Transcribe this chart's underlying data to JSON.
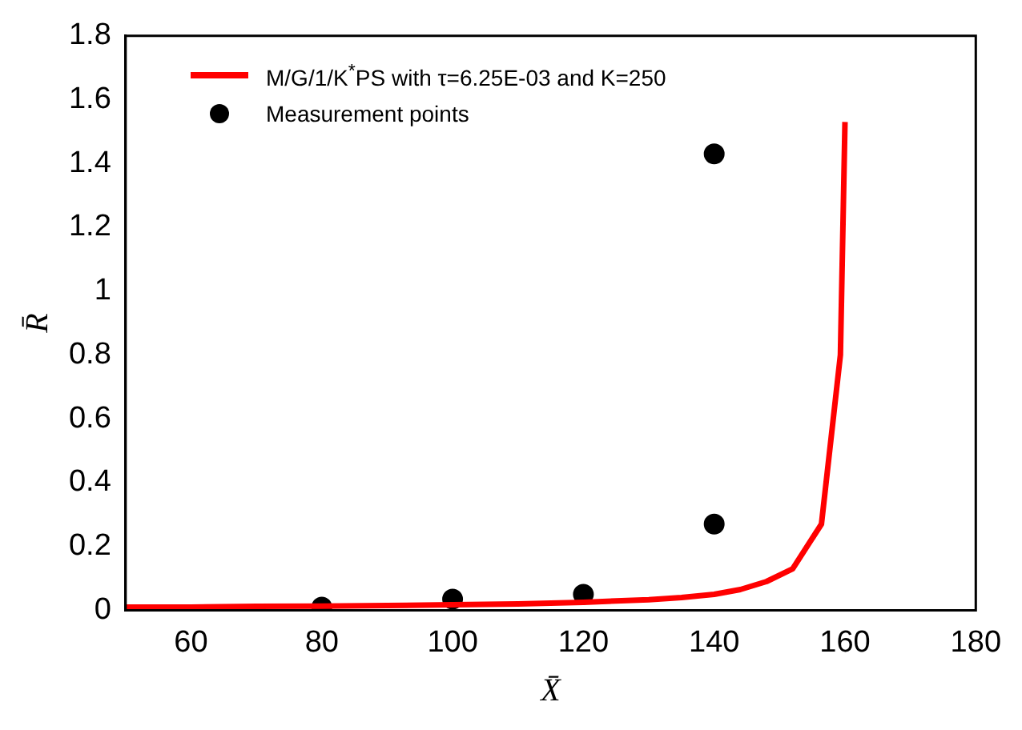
{
  "chart_data": {
    "type": "line",
    "xlabel": "X̄",
    "ylabel": "R̄",
    "xlim": [
      50,
      180
    ],
    "xticks": [
      60,
      80,
      100,
      120,
      140,
      160,
      180
    ],
    "ylim": [
      0,
      1.8
    ],
    "yticks": [
      0,
      0.2,
      0.4,
      0.6,
      0.8,
      1,
      1.2,
      1.4,
      1.6,
      1.8
    ],
    "grid": false,
    "legend": "top left",
    "series": [
      {
        "name": "M/G/1/K$^{*}$PS with τ=6.25E-03 and K=250",
        "type": "line",
        "color": "#ff0000",
        "line_style": "solid",
        "x": [
          50,
          60,
          70,
          80,
          90,
          100,
          110,
          120,
          130,
          135,
          140,
          144,
          148,
          152,
          156.4,
          159.3,
          160
        ],
        "values": [
          0.01,
          0.01,
          0.012,
          0.013,
          0.015,
          0.017,
          0.02,
          0.025,
          0.033,
          0.04,
          0.05,
          0.065,
          0.09,
          0.13,
          0.27,
          0.8,
          1.53
        ]
      },
      {
        "name": "Measurement points",
        "type": "scatter",
        "color": "#000000",
        "marker": "circle",
        "x": [
          80,
          100,
          120,
          140,
          140
        ],
        "values": [
          0.01,
          0.035,
          0.05,
          0.27,
          1.43
        ]
      }
    ]
  }
}
